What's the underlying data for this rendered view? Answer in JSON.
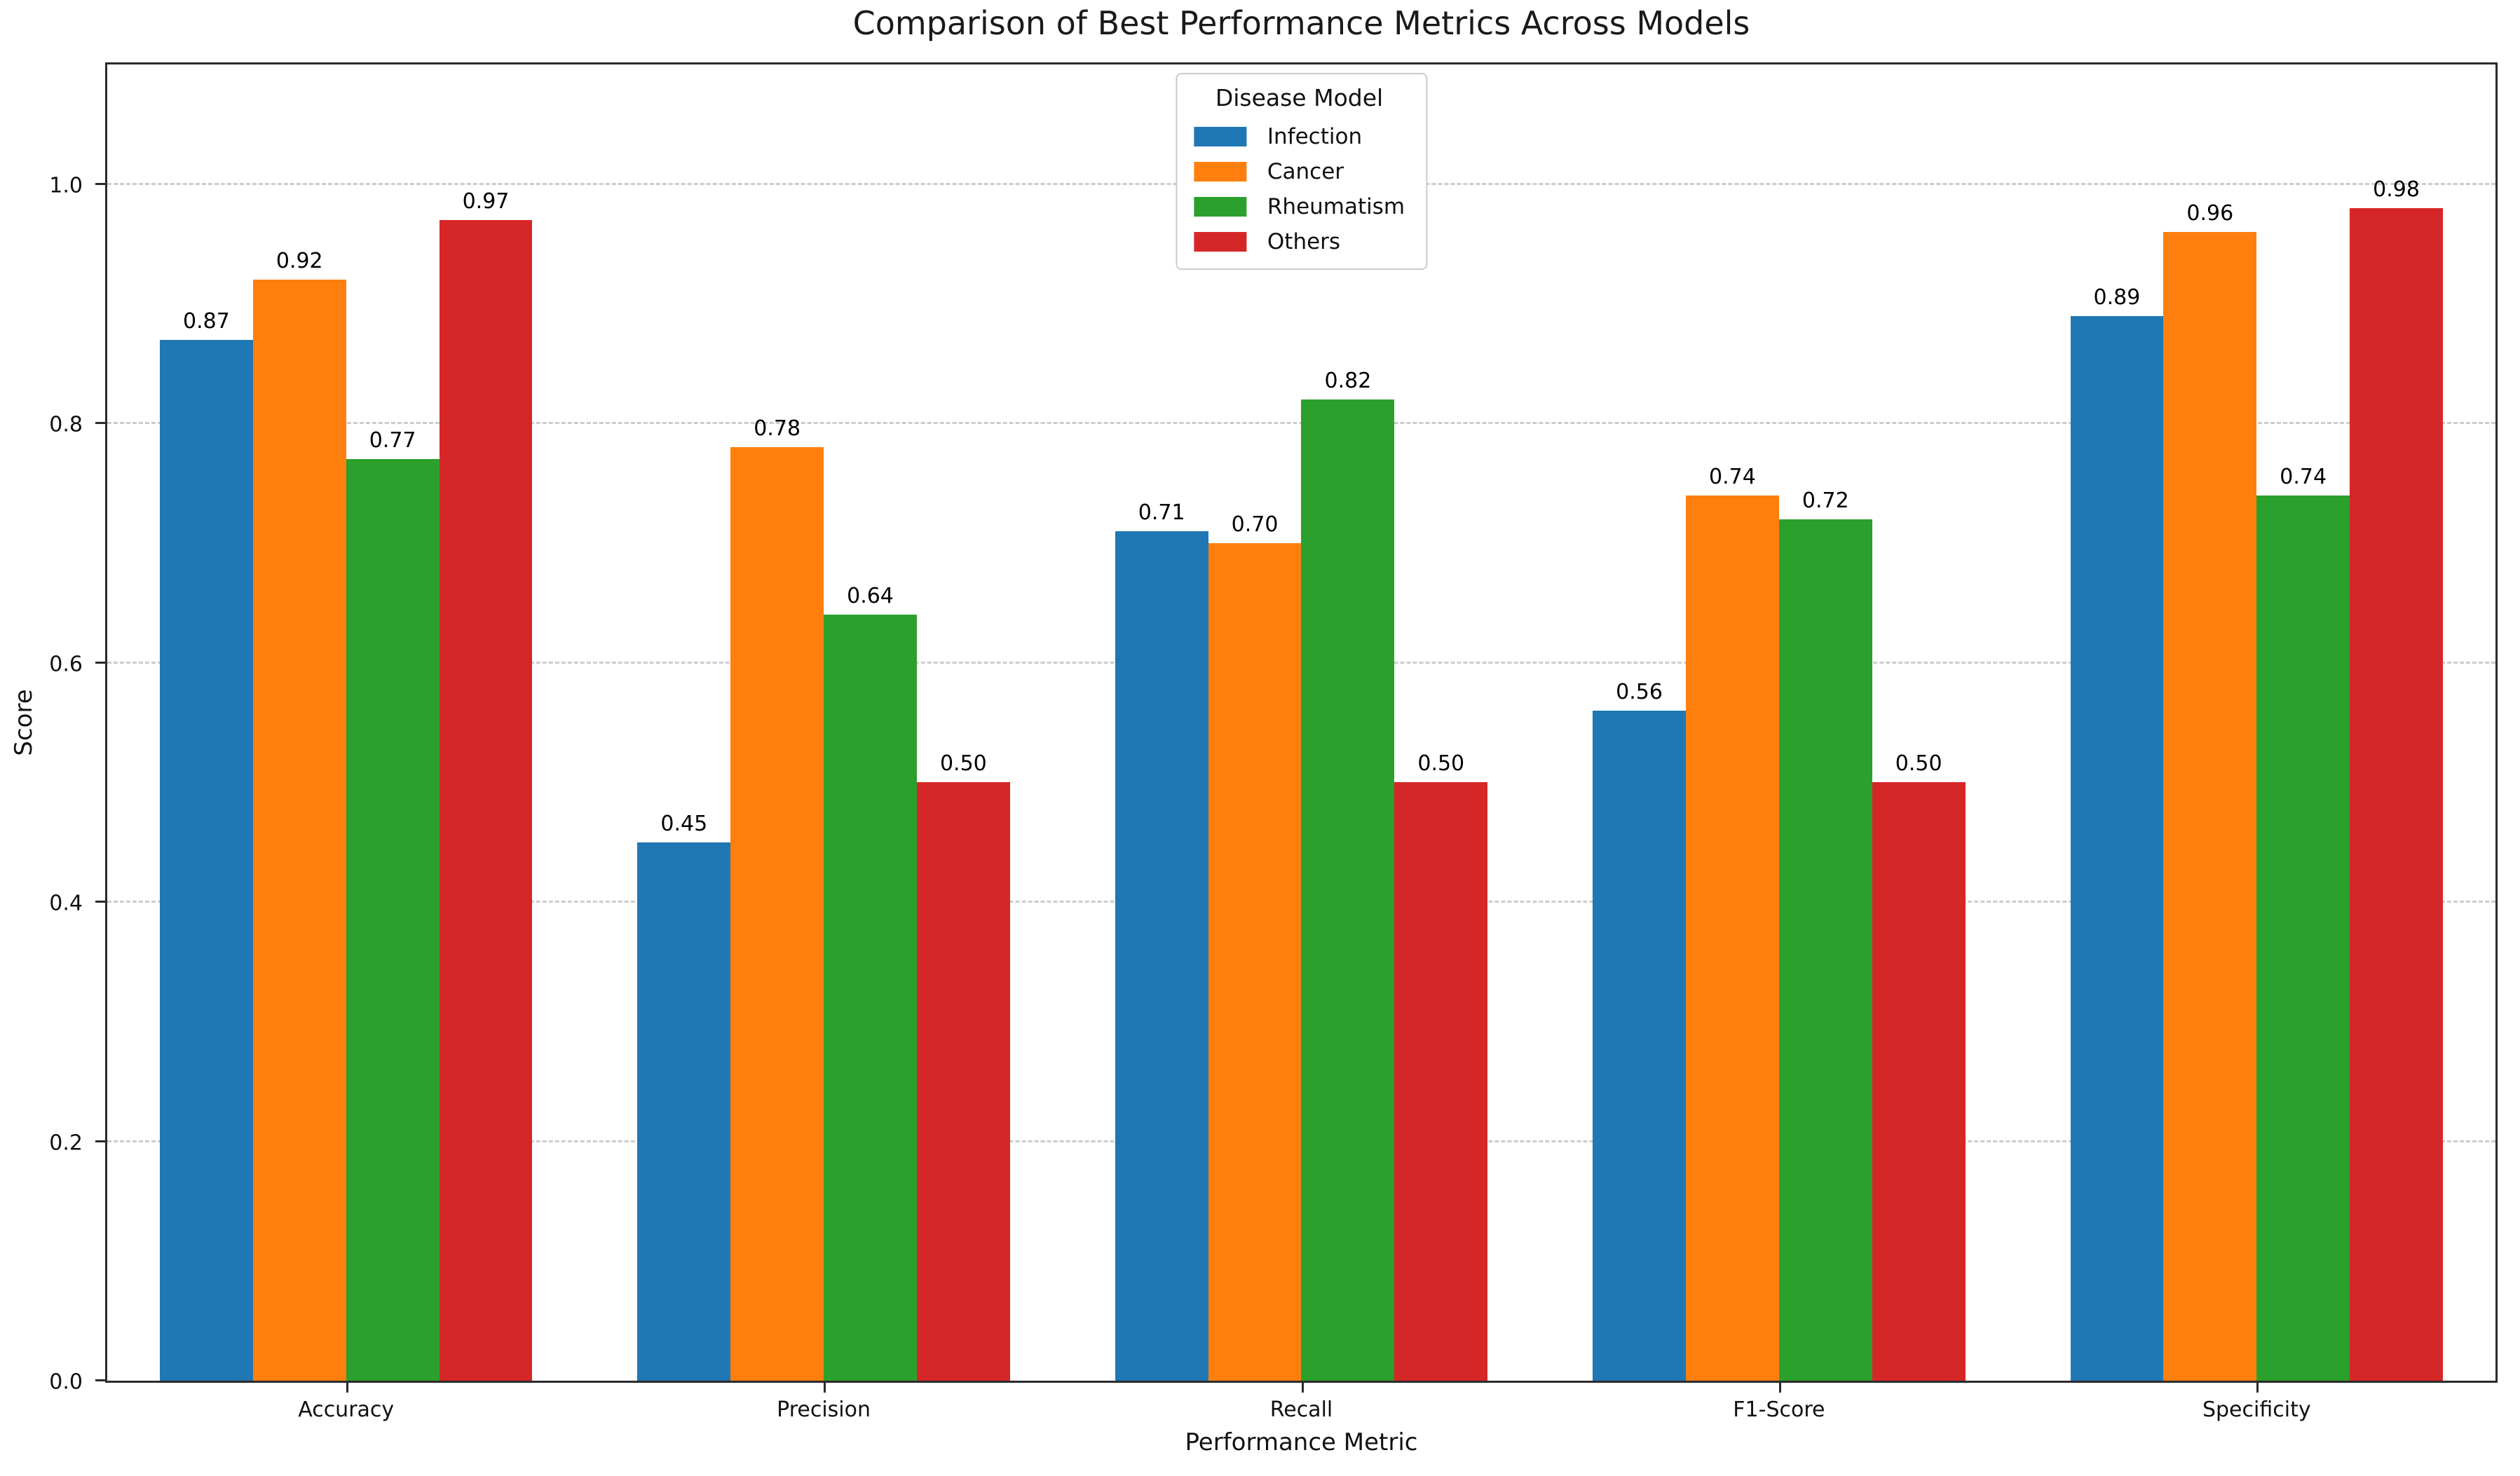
{
  "chart_data": {
    "type": "bar",
    "title": "Comparison of Best Performance Metrics Across Models",
    "xlabel": "Performance Metric",
    "ylabel": "Score",
    "categories": [
      "Accuracy",
      "Precision",
      "Recall",
      "F1-Score",
      "Specificity"
    ],
    "series": [
      {
        "name": "Infection",
        "color": "#1f77b4",
        "values": [
          0.87,
          0.45,
          0.71,
          0.56,
          0.89
        ]
      },
      {
        "name": "Cancer",
        "color": "#ff7f0e",
        "values": [
          0.92,
          0.78,
          0.7,
          0.74,
          0.96
        ]
      },
      {
        "name": "Rheumatism",
        "color": "#2ca02c",
        "values": [
          0.77,
          0.64,
          0.82,
          0.72,
          0.74
        ]
      },
      {
        "name": "Others",
        "color": "#d62728",
        "values": [
          0.97,
          0.5,
          0.5,
          0.5,
          0.98
        ]
      }
    ],
    "legend": {
      "title": "Disease Model",
      "position": "upper center"
    },
    "ylim": [
      0,
      1.1
    ],
    "y_ticks": [
      0.0,
      0.2,
      0.4,
      0.6,
      0.8,
      1.0
    ],
    "grid": "horizontal dashed at y ticks, behind bars",
    "bar_value_labels": "shown above each bar, 2 decimal places",
    "colors": {
      "grid": "#cccccc",
      "spine": "#2b2b2b",
      "background": "#ffffff",
      "text": "#111111"
    }
  }
}
